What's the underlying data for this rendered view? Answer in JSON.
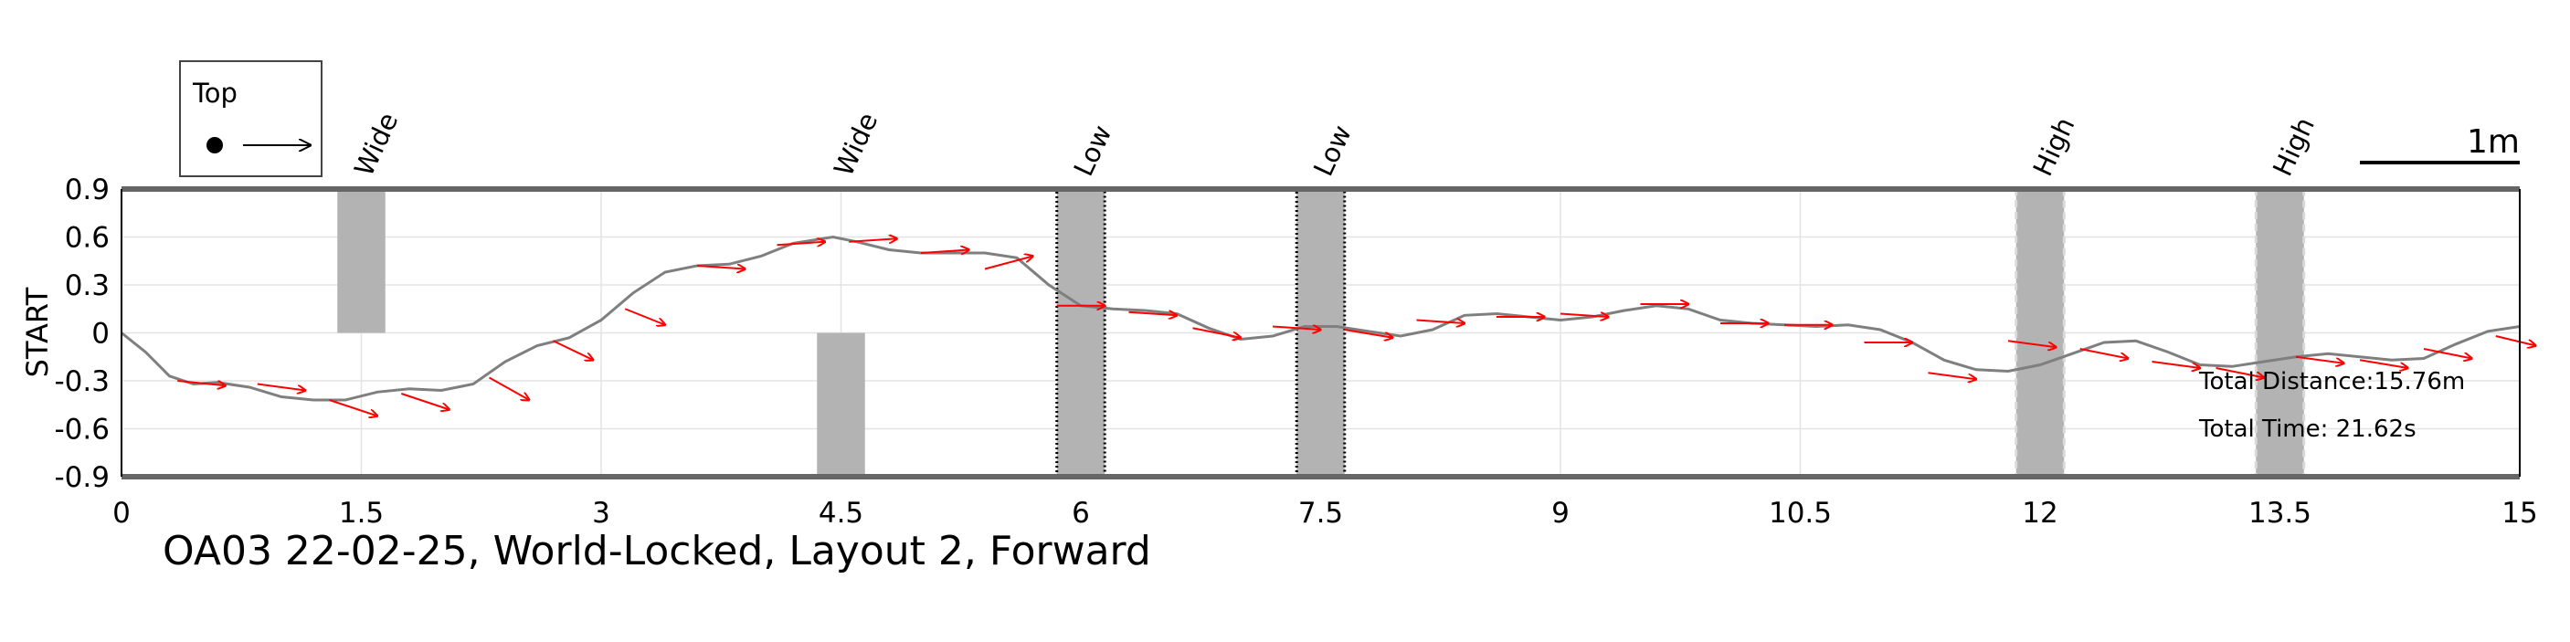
{
  "chart_data": {
    "type": "line",
    "title": "OA03 22-02-25, World-Locked, Layout 2, Forward",
    "ylabel": "START",
    "xlabel": "",
    "xlim": [
      0,
      15
    ],
    "ylim": [
      -0.9,
      0.9
    ],
    "x_ticks": [
      0,
      1.5,
      3,
      4.5,
      6,
      7.5,
      9,
      10.5,
      12,
      13.5,
      15
    ],
    "x_tick_labels": [
      "0",
      "1.5",
      "3",
      "4.5",
      "6",
      "7.5",
      "9",
      "10.5",
      "12",
      "13.5",
      "15"
    ],
    "y_ticks": [
      -0.9,
      -0.6,
      -0.3,
      0,
      0.3,
      0.6,
      0.9
    ],
    "y_tick_labels": [
      "-0.9",
      "-0.6",
      "-0.3",
      "0",
      "0.3",
      "0.6",
      "0.9"
    ],
    "grid": true,
    "legend": {
      "placement": "top-left outside",
      "label": "Top"
    },
    "scale_bar": {
      "label": "1m",
      "length": 1.0
    },
    "series": [
      {
        "color": "#7f7f7f",
        "x": [
          0,
          0.15,
          0.3,
          0.45,
          0.6,
          0.8,
          1.0,
          1.2,
          1.4,
          1.6,
          1.8,
          2.0,
          2.2,
          2.4,
          2.6,
          2.8,
          3.0,
          3.2,
          3.4,
          3.6,
          3.8,
          4.0,
          4.2,
          4.45,
          4.6,
          4.8,
          5.0,
          5.2,
          5.4,
          5.6,
          5.8,
          6.0,
          6.2,
          6.4,
          6.6,
          6.8,
          7.0,
          7.2,
          7.4,
          7.6,
          7.8,
          8.0,
          8.2,
          8.4,
          8.6,
          8.8,
          9.0,
          9.2,
          9.4,
          9.6,
          9.8,
          10.0,
          10.2,
          10.4,
          10.6,
          10.8,
          11.0,
          11.2,
          11.4,
          11.6,
          11.8,
          12.0,
          12.2,
          12.4,
          12.6,
          12.8,
          13.0,
          13.2,
          13.4,
          13.6,
          13.8,
          14.0,
          14.2,
          14.4,
          14.6,
          14.8,
          15.0
        ],
        "y": [
          0.0,
          -0.12,
          -0.27,
          -0.32,
          -0.31,
          -0.34,
          -0.4,
          -0.42,
          -0.42,
          -0.37,
          -0.35,
          -0.36,
          -0.32,
          -0.18,
          -0.08,
          -0.03,
          0.08,
          0.25,
          0.38,
          0.42,
          0.43,
          0.48,
          0.56,
          0.6,
          0.57,
          0.52,
          0.5,
          0.5,
          0.5,
          0.47,
          0.3,
          0.17,
          0.15,
          0.14,
          0.12,
          0.03,
          -0.04,
          -0.02,
          0.04,
          0.04,
          0.01,
          -0.02,
          0.02,
          0.11,
          0.12,
          0.1,
          0.08,
          0.1,
          0.14,
          0.17,
          0.15,
          0.08,
          0.06,
          0.05,
          0.04,
          0.05,
          0.02,
          -0.06,
          -0.17,
          -0.23,
          -0.24,
          -0.2,
          -0.13,
          -0.06,
          -0.05,
          -0.12,
          -0.2,
          -0.21,
          -0.18,
          -0.15,
          -0.13,
          -0.15,
          -0.17,
          -0.16,
          -0.07,
          0.01,
          0.04
        ]
      }
    ],
    "orientation_arrows": {
      "color": "#ff0000",
      "points": [
        [
          0.35,
          -0.3,
          0.3,
          -0.03
        ],
        [
          0.85,
          -0.32,
          0.3,
          -0.04
        ],
        [
          1.3,
          -0.42,
          0.3,
          -0.1
        ],
        [
          1.75,
          -0.38,
          0.3,
          -0.1
        ],
        [
          2.3,
          -0.28,
          0.25,
          -0.14
        ],
        [
          2.7,
          -0.05,
          0.25,
          -0.12
        ],
        [
          3.15,
          0.15,
          0.25,
          -0.1
        ],
        [
          3.6,
          0.42,
          0.3,
          -0.02
        ],
        [
          4.1,
          0.55,
          0.3,
          0.02
        ],
        [
          4.55,
          0.57,
          0.3,
          0.02
        ],
        [
          5.0,
          0.5,
          0.3,
          0.02
        ],
        [
          5.4,
          0.4,
          0.3,
          0.08
        ],
        [
          5.85,
          0.17,
          0.3,
          0.0
        ],
        [
          6.3,
          0.13,
          0.3,
          -0.02
        ],
        [
          6.7,
          0.03,
          0.3,
          -0.06
        ],
        [
          7.2,
          0.04,
          0.3,
          -0.02
        ],
        [
          7.65,
          0.02,
          0.3,
          -0.05
        ],
        [
          8.1,
          0.08,
          0.3,
          -0.02
        ],
        [
          8.6,
          0.1,
          0.3,
          0.0
        ],
        [
          9.0,
          0.12,
          0.3,
          -0.02
        ],
        [
          9.5,
          0.18,
          0.3,
          0.0
        ],
        [
          10.0,
          0.06,
          0.3,
          0.0
        ],
        [
          10.4,
          0.05,
          0.3,
          0.0
        ],
        [
          10.9,
          -0.06,
          0.3,
          0.0
        ],
        [
          11.3,
          -0.25,
          0.3,
          -0.04
        ],
        [
          11.8,
          -0.05,
          0.3,
          -0.04
        ],
        [
          12.25,
          -0.1,
          0.3,
          -0.06
        ],
        [
          12.7,
          -0.18,
          0.3,
          -0.04
        ],
        [
          13.1,
          -0.22,
          0.3,
          -0.06
        ],
        [
          13.6,
          -0.15,
          0.3,
          -0.04
        ],
        [
          14.0,
          -0.17,
          0.3,
          -0.05
        ],
        [
          14.4,
          -0.1,
          0.3,
          -0.06
        ],
        [
          14.85,
          -0.02,
          0.25,
          -0.06
        ]
      ]
    },
    "obstacles": [
      {
        "label": "Wide",
        "x": [
          1.35,
          1.65
        ],
        "y": [
          0,
          0.9
        ],
        "style": "plain"
      },
      {
        "label": "Wide",
        "x": [
          4.35,
          4.65
        ],
        "y": [
          -0.9,
          0
        ],
        "style": "plain"
      },
      {
        "label": "Low",
        "x": [
          5.85,
          6.15
        ],
        "y": [
          -0.9,
          0.9
        ],
        "style": "dotted"
      },
      {
        "label": "Low",
        "x": [
          7.35,
          7.65
        ],
        "y": [
          -0.9,
          0.9
        ],
        "style": "dotted"
      },
      {
        "label": "High",
        "x": [
          11.85,
          12.15
        ],
        "y": [
          -0.9,
          0.9
        ],
        "style": "dashed"
      },
      {
        "label": "High",
        "x": [
          13.35,
          13.65
        ],
        "y": [
          -0.9,
          0.9
        ],
        "style": "dashed"
      }
    ],
    "annotations": [
      "Total Distance:15.76m",
      "Total Time: 21.62s"
    ]
  }
}
